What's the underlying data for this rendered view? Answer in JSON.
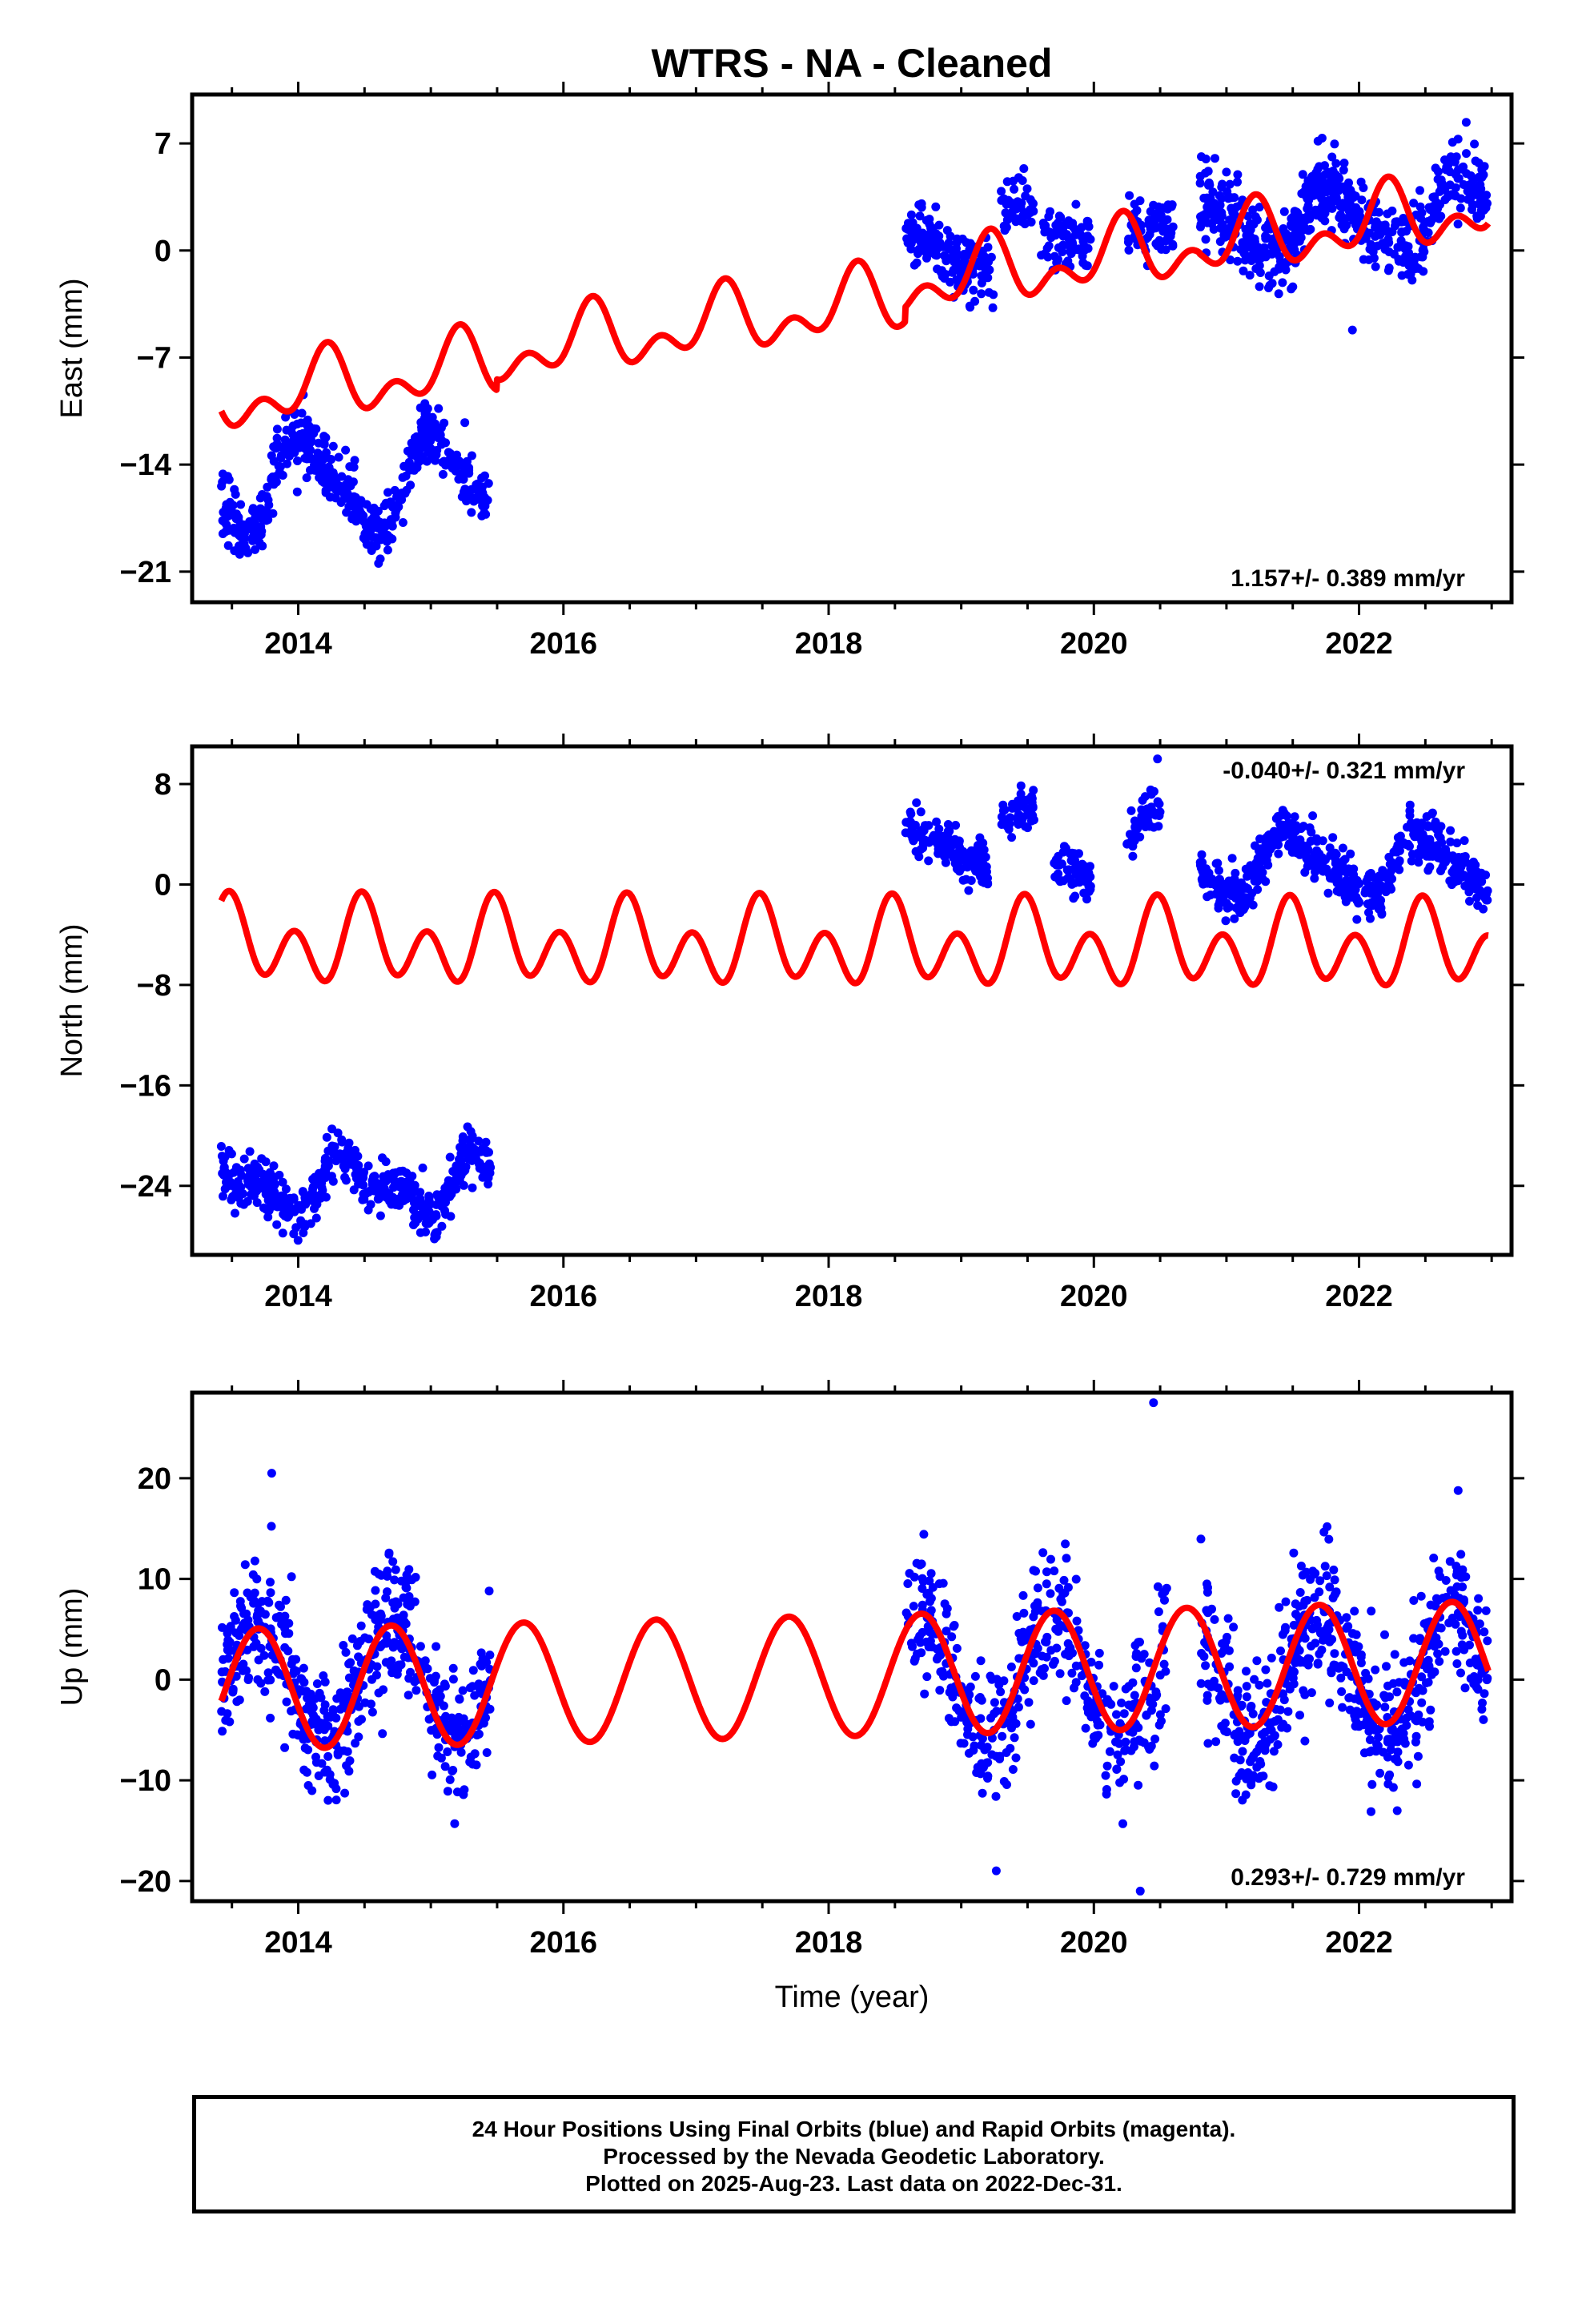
{
  "chart_data": {
    "type": "scatter",
    "title": "WTRS  - NA - Cleaned",
    "xlabel": "Time (year)",
    "xlim": [
      2013.2,
      2023.15
    ],
    "xticks": [
      "2014",
      "2016",
      "2018",
      "2020",
      "2022"
    ],
    "xtick_values": [
      2014,
      2016,
      2018,
      2020,
      2022
    ],
    "series_colors": {
      "final_orbits": "#0000ff",
      "model_fit": "#ff0000"
    },
    "panels": [
      {
        "id": "east",
        "ylabel": "East (mm)",
        "ylim": [
          -23,
          10.2
        ],
        "yticks": [
          -21,
          -14,
          -7,
          0,
          7
        ],
        "yticklabels": [
          "−21",
          "−14",
          "−7",
          "0",
          "7"
        ],
        "rate": "1.157+/- 0.389 mm/yr",
        "rate_position": "bottom-right",
        "segments": [
          {
            "start": 2013.42,
            "end": 2015.45,
            "mean": -15.2,
            "slope": 0,
            "amp": 3.0,
            "phase": 0.8,
            "amp2": 0.8,
            "noise": 1.0,
            "n": 520
          },
          {
            "start": 2018.58,
            "end": 2019.25,
            "mean": 0.0,
            "slope": -1.5,
            "amp": 0.8,
            "phase": 0.3,
            "amp2": 0,
            "noise": 1.0,
            "n": 170
          },
          {
            "start": 2019.3,
            "end": 2019.55,
            "mean": 3.0,
            "slope": 0,
            "amp": 0,
            "phase": 0,
            "amp2": 0,
            "noise": 1.1,
            "n": 50
          },
          {
            "start": 2019.6,
            "end": 2019.98,
            "mean": 0.8,
            "slope": -3.0,
            "amp": 0,
            "phase": 0,
            "amp2": 0,
            "noise": 1.0,
            "n": 80
          },
          {
            "start": 2020.25,
            "end": 2020.6,
            "mean": 1.5,
            "slope": 0,
            "amp": 0,
            "phase": 0,
            "amp2": 0,
            "noise": 1.1,
            "n": 70
          },
          {
            "start": 2020.8,
            "end": 2022.97,
            "mean": 2.0,
            "slope": 0.5,
            "amp": 2.2,
            "phase": 0.55,
            "amp2": 0.5,
            "noise": 1.3,
            "n": 560
          }
        ],
        "outliers": [
          [
            2021.95,
            -5.2
          ]
        ],
        "model": {
          "offsets": [
            [
              2013.42,
              -9.8
            ],
            [
              2015.5,
              -6.7
            ],
            [
              2018.58,
              -2.2
            ],
            [
              2020.8,
              0.3
            ]
          ],
          "rate": 1.157,
          "amp1": 1.6,
          "phase1": 0.95,
          "amp2": 1.3,
          "phase2": 0.6
        }
      },
      {
        "id": "north",
        "ylabel": "North (mm)",
        "ylim": [
          -29.5,
          11
        ],
        "yticks": [
          -24,
          -16,
          -8,
          0,
          8
        ],
        "yticklabels": [
          "−24",
          "−16",
          "−8",
          "0",
          "8"
        ],
        "rate": "-0.040+/- 0.321 mm/yr",
        "rate_position": "top-right",
        "segments": [
          {
            "start": 2013.42,
            "end": 2015.45,
            "mean": -23.8,
            "slope": 0,
            "amp": 1.8,
            "phase": 0.15,
            "amp2": 1.2,
            "noise": 1.0,
            "n": 480
          },
          {
            "start": 2018.58,
            "end": 2019.2,
            "mean": 3.0,
            "slope": -4.0,
            "amp": 0.5,
            "phase": 0.4,
            "amp2": 0,
            "noise": 1.0,
            "n": 150
          },
          {
            "start": 2019.3,
            "end": 2019.55,
            "mean": 6.0,
            "slope": 5.0,
            "amp": 0,
            "phase": 0,
            "amp2": 0,
            "noise": 0.8,
            "n": 50
          },
          {
            "start": 2019.7,
            "end": 2019.98,
            "mean": 1.0,
            "slope": -6.0,
            "amp": 0,
            "phase": 0,
            "amp2": 0,
            "noise": 0.9,
            "n": 60
          },
          {
            "start": 2020.25,
            "end": 2020.5,
            "mean": 5.0,
            "slope": 8.0,
            "amp": 0,
            "phase": 0,
            "amp2": 0,
            "noise": 0.9,
            "n": 50
          },
          {
            "start": 2020.8,
            "end": 2022.97,
            "mean": 1.5,
            "slope": 0,
            "amp": 2.4,
            "phase": 0.25,
            "amp2": 0.6,
            "noise": 1.0,
            "n": 540
          }
        ],
        "outliers": [
          [
            2020.48,
            10.0
          ]
        ],
        "model": {
          "offsets": [
            [
              2013.42,
              -4.7
            ]
          ],
          "rate": -0.04,
          "amp1": 1.6,
          "phase1": 0.25,
          "amp2": 2.6,
          "phase2": 0.35
        }
      },
      {
        "id": "up",
        "ylabel": "Up (mm)",
        "ylim": [
          -22,
          28.5
        ],
        "yticks": [
          -20,
          -10,
          0,
          10,
          20
        ],
        "yticklabels": [
          "−20",
          "−10",
          "0",
          "10",
          "20"
        ],
        "rate": "0.293+/- 0.729 mm/yr",
        "rate_position": "bottom-right",
        "segments": [
          {
            "start": 2013.42,
            "end": 2015.45,
            "mean": 0.0,
            "slope": 0,
            "amp": 6.0,
            "phase": 0.45,
            "amp2": 0,
            "noise": 3.5,
            "n": 520
          },
          {
            "start": 2018.58,
            "end": 2020.55,
            "mean": 0.0,
            "slope": 0,
            "amp": 6.0,
            "phase": 0.45,
            "amp2": 0,
            "noise": 3.5,
            "n": 420
          },
          {
            "start": 2020.8,
            "end": 2022.97,
            "mean": 0.5,
            "slope": 0,
            "amp": 6.2,
            "phase": 0.45,
            "amp2": 0,
            "noise": 3.6,
            "n": 560
          }
        ],
        "outliers": [
          [
            2020.45,
            27.5
          ],
          [
            2020.35,
            -21.0
          ],
          [
            2013.8,
            20.5
          ]
        ],
        "model": {
          "offsets": [
            [
              2013.42,
              -1.0
            ]
          ],
          "rate": 0.293,
          "amp1": 6.0,
          "phase1": 0.45,
          "amp2": 0,
          "phase2": 0
        }
      }
    ]
  },
  "footer": {
    "line1": "24 Hour Positions Using Final Orbits (blue) and Rapid Orbits (magenta).",
    "line2": "Processed by the Nevada Geodetic Laboratory.",
    "line3": "Plotted on 2025-Aug-23. Last data on 2022-Dec-31."
  }
}
